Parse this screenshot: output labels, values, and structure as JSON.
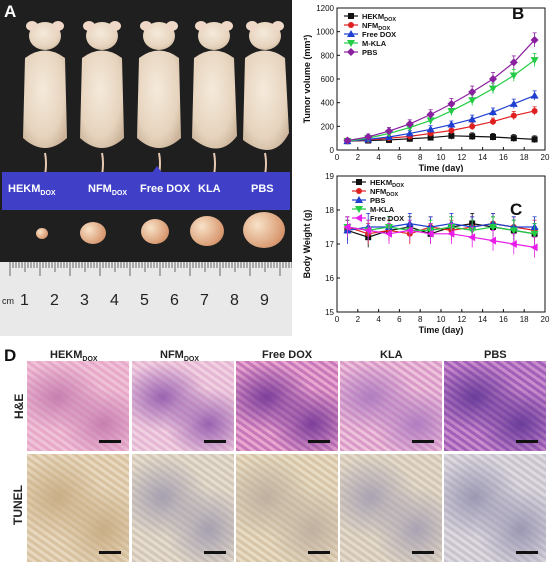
{
  "panels": {
    "a": "A",
    "b": "B",
    "c": "C",
    "d": "D"
  },
  "panelA": {
    "groups": [
      {
        "main": "HEKM",
        "sub": "DOX"
      },
      {
        "main": "NFM",
        "sub": "DOX"
      },
      {
        "main": "Free DOX",
        "sub": ""
      },
      {
        "main": "KLA",
        "sub": ""
      },
      {
        "main": "PBS",
        "sub": ""
      }
    ],
    "ruler_unit": "cm",
    "ruler_numbers": [
      "1",
      "2",
      "3",
      "4",
      "5",
      "6",
      "7",
      "8",
      "9"
    ]
  },
  "panelD": {
    "columns": [
      {
        "main": "HEKM",
        "sub": "DOX"
      },
      {
        "main": "NFM",
        "sub": "DOX"
      },
      {
        "main": "Free DOX",
        "sub": ""
      },
      {
        "main": "KLA",
        "sub": ""
      },
      {
        "main": "PBS",
        "sub": ""
      }
    ],
    "rows": [
      "H&E",
      "TUNEL"
    ]
  },
  "colors": {
    "hekm": "#111111",
    "nfm": "#e02020",
    "freedox_b": "#1f3fd0",
    "mkla": "#22cc44",
    "pbs": "#8a1fa0",
    "freedox_c": "#e81ee8"
  },
  "chart_data": [
    {
      "type": "line",
      "xlabel": "Time (day)",
      "ylabel": "Tumor volume (mm³)",
      "xlim": [
        0,
        20
      ],
      "ylim": [
        0,
        1200
      ],
      "xticks": [
        0,
        2,
        4,
        6,
        8,
        10,
        12,
        14,
        16,
        18,
        20
      ],
      "yticks": [
        0,
        200,
        400,
        600,
        800,
        1000,
        1200
      ],
      "legend_position": "top-left",
      "x": [
        1,
        3,
        5,
        7,
        9,
        11,
        13,
        15,
        17,
        19
      ],
      "series": [
        {
          "name": "HEKM",
          "sub": "DOX",
          "color": "#111111",
          "marker": "square",
          "values": [
            75,
            80,
            85,
            95,
            105,
            120,
            115,
            110,
            100,
            90
          ],
          "errors": [
            20,
            20,
            20,
            25,
            25,
            30,
            30,
            30,
            30,
            30
          ]
        },
        {
          "name": "NFM",
          "sub": "DOX",
          "color": "#e02020",
          "marker": "circle",
          "values": [
            75,
            85,
            100,
            115,
            140,
            165,
            200,
            240,
            290,
            330
          ],
          "errors": [
            20,
            20,
            20,
            25,
            25,
            30,
            30,
            30,
            35,
            35
          ]
        },
        {
          "name": "Free DOX",
          "sub": "",
          "color": "#1f3fd0",
          "marker": "triangle",
          "values": [
            75,
            90,
            110,
            140,
            175,
            215,
            260,
            320,
            390,
            460
          ],
          "errors": [
            20,
            20,
            25,
            25,
            30,
            30,
            35,
            35,
            40,
            40
          ]
        },
        {
          "name": "M-KLA",
          "sub": "",
          "color": "#22cc44",
          "marker": "triangle-down",
          "values": [
            75,
            100,
            140,
            190,
            250,
            330,
            420,
            520,
            630,
            760
          ],
          "errors": [
            20,
            20,
            25,
            30,
            35,
            40,
            45,
            45,
            50,
            55
          ]
        },
        {
          "name": "PBS",
          "sub": "",
          "color": "#8a1fa0",
          "marker": "diamond",
          "values": [
            80,
            110,
            160,
            220,
            300,
            390,
            490,
            600,
            740,
            930
          ],
          "errors": [
            20,
            25,
            30,
            35,
            40,
            45,
            50,
            55,
            55,
            60
          ]
        }
      ]
    },
    {
      "type": "line",
      "xlabel": "Time (day)",
      "ylabel": "Body Weight (g)",
      "xlim": [
        0,
        20
      ],
      "ylim": [
        15,
        19
      ],
      "xticks": [
        0,
        2,
        4,
        6,
        8,
        10,
        12,
        14,
        16,
        18,
        20
      ],
      "yticks": [
        15,
        16,
        17,
        18,
        19
      ],
      "legend_position": "top-center",
      "x": [
        1,
        3,
        5,
        7,
        9,
        11,
        13,
        15,
        17,
        19
      ],
      "series": [
        {
          "name": "HEKM",
          "sub": "DOX",
          "color": "#111111",
          "marker": "square",
          "values": [
            17.4,
            17.2,
            17.4,
            17.5,
            17.3,
            17.5,
            17.6,
            17.5,
            17.4,
            17.3
          ],
          "errors": [
            0.3,
            0.3,
            0.3,
            0.3,
            0.3,
            0.3,
            0.3,
            0.3,
            0.3,
            0.3
          ]
        },
        {
          "name": "NFM",
          "sub": "DOX",
          "color": "#e02020",
          "marker": "circle",
          "values": [
            17.5,
            17.3,
            17.4,
            17.3,
            17.5,
            17.4,
            17.5,
            17.6,
            17.5,
            17.4
          ],
          "errors": [
            0.3,
            0.3,
            0.3,
            0.3,
            0.3,
            0.3,
            0.3,
            0.3,
            0.3,
            0.3
          ]
        },
        {
          "name": "PBS",
          "sub": "",
          "color": "#1f3fd0",
          "marker": "triangle",
          "values": [
            17.4,
            17.5,
            17.5,
            17.6,
            17.5,
            17.6,
            17.5,
            17.6,
            17.5,
            17.5
          ],
          "errors": [
            0.4,
            0.4,
            0.3,
            0.3,
            0.3,
            0.3,
            0.3,
            0.3,
            0.3,
            0.3
          ]
        },
        {
          "name": "M-KLA",
          "sub": "",
          "color": "#22cc44",
          "marker": "triangle-down",
          "values": [
            17.5,
            17.4,
            17.5,
            17.4,
            17.4,
            17.5,
            17.4,
            17.5,
            17.4,
            17.3
          ],
          "errors": [
            0.3,
            0.3,
            0.3,
            0.3,
            0.3,
            0.3,
            0.3,
            0.3,
            0.3,
            0.3
          ]
        },
        {
          "name": "Free DOX",
          "sub": "",
          "color": "#e81ee8",
          "marker": "triangle-left",
          "values": [
            17.5,
            17.4,
            17.3,
            17.4,
            17.3,
            17.3,
            17.2,
            17.1,
            17.0,
            16.9
          ],
          "errors": [
            0.3,
            0.3,
            0.3,
            0.3,
            0.3,
            0.3,
            0.3,
            0.3,
            0.3,
            0.3
          ]
        }
      ]
    }
  ]
}
